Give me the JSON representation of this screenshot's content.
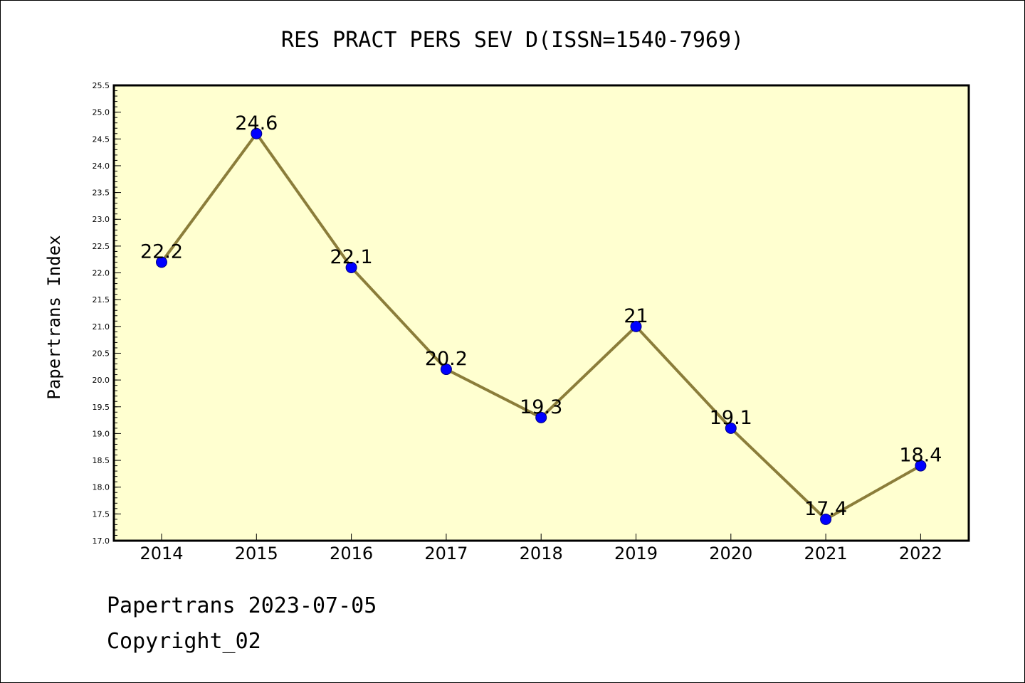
{
  "chart_data": {
    "type": "line",
    "title": "RES PRACT PERS SEV D(ISSN=1540-7969)",
    "ylabel": "Papertrans Index",
    "xlabel": "",
    "categories": [
      "2014",
      "2015",
      "2016",
      "2017",
      "2018",
      "2019",
      "2020",
      "2021",
      "2022"
    ],
    "series": [
      {
        "values": [
          22.2,
          24.6,
          22.1,
          20.2,
          19.3,
          21.0,
          19.1,
          17.4,
          18.4
        ]
      }
    ],
    "data_labels": [
      "22.2",
      "24.6",
      "22.1",
      "20.2",
      "19.3",
      "21",
      "19.1",
      "17.4",
      "18.4"
    ],
    "ylim": [
      17.0,
      25.5
    ],
    "yticks": [
      "17.0",
      "17.5",
      "18.0",
      "18.5",
      "19.0",
      "19.5",
      "20.0",
      "20.5",
      "21.0",
      "21.5",
      "22.0",
      "22.5",
      "23.0",
      "23.5",
      "24.0",
      "24.5",
      "25.0",
      "25.5"
    ],
    "grid": false,
    "colors": {
      "plot_background": "#ffffd0",
      "line": "#8b7d3a",
      "marker": "#0000ff",
      "marker_edge": "#000080"
    }
  },
  "footer": {
    "date_line": "Papertrans 2023-07-05",
    "copyright_line": "Copyright_02"
  }
}
